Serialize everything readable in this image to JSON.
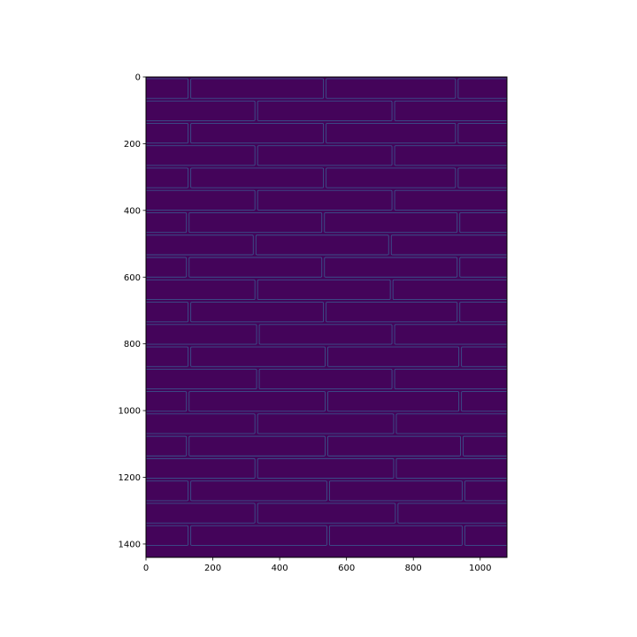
{
  "chart_data": {
    "type": "heatmap",
    "title": "",
    "xlabel": "",
    "ylabel": "",
    "xlim": [
      0,
      1080
    ],
    "ylim": [
      1440,
      0
    ],
    "x_ticks": [
      0,
      200,
      400,
      600,
      800,
      1000
    ],
    "y_ticks": [
      0,
      200,
      400,
      600,
      800,
      1000,
      1200,
      1400
    ],
    "x_tick_labels": [
      "0",
      "200",
      "400",
      "600",
      "800",
      "1000"
    ],
    "y_tick_labels": [
      "0",
      "200",
      "400",
      "600",
      "800",
      "1000",
      "1200",
      "1400"
    ],
    "grid": false,
    "colormap": "viridis",
    "background_color": "#44045a",
    "edge_color": "#3b4f8a",
    "course_height": 67,
    "brick_courses": [
      {
        "y0": 5,
        "joints": [
          130,
          535,
          930
        ]
      },
      {
        "y0": 72,
        "joints": [
          330,
          740
        ]
      },
      {
        "y0": 139,
        "joints": [
          130,
          535,
          930
        ]
      },
      {
        "y0": 206,
        "joints": [
          330,
          740
        ]
      },
      {
        "y0": 273,
        "joints": [
          130,
          535,
          930
        ]
      },
      {
        "y0": 340,
        "joints": [
          330,
          740
        ]
      },
      {
        "y0": 407,
        "joints": [
          125,
          530,
          935
        ]
      },
      {
        "y0": 474,
        "joints": [
          325,
          730
        ]
      },
      {
        "y0": 541,
        "joints": [
          125,
          530,
          935
        ]
      },
      {
        "y0": 608,
        "joints": [
          330,
          735
        ]
      },
      {
        "y0": 675,
        "joints": [
          130,
          535,
          935
        ]
      },
      {
        "y0": 742,
        "joints": [
          335,
          740
        ]
      },
      {
        "y0": 809,
        "joints": [
          130,
          540,
          940
        ]
      },
      {
        "y0": 876,
        "joints": [
          335,
          740
        ]
      },
      {
        "y0": 943,
        "joints": [
          125,
          540,
          940
        ]
      },
      {
        "y0": 1010,
        "joints": [
          330,
          745
        ]
      },
      {
        "y0": 1077,
        "joints": [
          125,
          540,
          945
        ]
      },
      {
        "y0": 1144,
        "joints": [
          330,
          745
        ]
      },
      {
        "y0": 1211,
        "joints": [
          130,
          545,
          950
        ]
      },
      {
        "y0": 1278,
        "joints": [
          330,
          750
        ]
      },
      {
        "y0": 1345,
        "joints": [
          130,
          545,
          950
        ]
      }
    ]
  }
}
